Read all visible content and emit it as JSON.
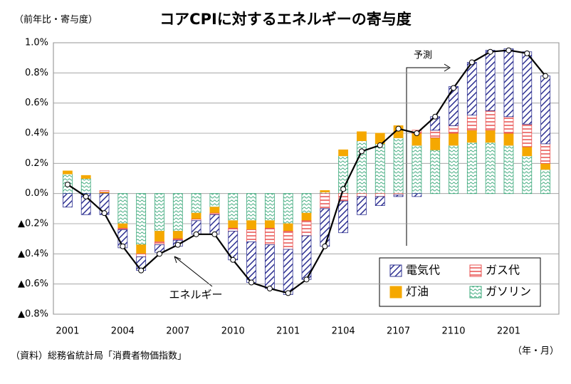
{
  "chart_data": {
    "type": "stacked_bar_line",
    "title": "コアCPIに対するエネルギーの寄与度",
    "y_label": "（前年比・寄与度）",
    "x_label": "（年・月）",
    "source": "（資料）総務省統計局「消費者物価指数」",
    "annotations": [
      "予測",
      "エネルギー"
    ],
    "categories": [
      "2001",
      null,
      null,
      "2004",
      null,
      null,
      "2007",
      null,
      null,
      "2010",
      null,
      null,
      "2101",
      null,
      null,
      "2104",
      null,
      null,
      "2107",
      null,
      null,
      "2110",
      null,
      null,
      "2201",
      null,
      null
    ],
    "series": [
      {
        "name": "電気代",
        "color": "#2e3192",
        "values": [
          -0.09,
          -0.14,
          -0.14,
          -0.12,
          -0.09,
          -0.05,
          -0.04,
          -0.09,
          -0.13,
          -0.19,
          -0.27,
          -0.29,
          -0.3,
          -0.29,
          -0.25,
          -0.21,
          -0.12,
          -0.06,
          -0.01,
          -0.02,
          0.09,
          0.26,
          0.35,
          0.4,
          0.45,
          0.48,
          0.45
        ]
      },
      {
        "name": "ガス代",
        "color": "#e8504f",
        "values": [
          0,
          0,
          0.01,
          -0.01,
          -0.02,
          -0.02,
          -0.01,
          -0.01,
          -0.01,
          -0.02,
          -0.08,
          -0.11,
          -0.12,
          -0.1,
          -0.1,
          -0.05,
          -0.02,
          -0.02,
          -0.01,
          0.02,
          0.05,
          0.05,
          0.1,
          0.13,
          0.11,
          0.15,
          0.13
        ]
      },
      {
        "name": "灯油",
        "color": "#f5a800",
        "values": [
          0.02,
          0.02,
          0.01,
          -0.03,
          -0.06,
          -0.07,
          -0.05,
          -0.04,
          -0.04,
          -0.05,
          -0.06,
          -0.05,
          -0.05,
          -0.05,
          0.01,
          0.04,
          0.06,
          0.07,
          0.08,
          0.08,
          0.08,
          0.08,
          0.08,
          0.08,
          0.08,
          0.06,
          0.04
        ]
      },
      {
        "name": "ガソリン",
        "color": "#3aa87a",
        "values": [
          0.13,
          0.1,
          0,
          -0.2,
          -0.34,
          -0.25,
          -0.25,
          -0.13,
          -0.09,
          -0.18,
          -0.18,
          -0.18,
          -0.2,
          -0.13,
          0.01,
          0.25,
          0.35,
          0.33,
          0.37,
          0.32,
          0.29,
          0.32,
          0.34,
          0.34,
          0.32,
          0.25,
          0.16
        ]
      }
    ],
    "line": {
      "name": "エネルギー",
      "color": "#000000",
      "values": [
        0.06,
        -0.02,
        -0.13,
        -0.35,
        -0.51,
        -0.4,
        -0.34,
        -0.27,
        -0.27,
        -0.44,
        -0.59,
        -0.63,
        -0.66,
        -0.57,
        -0.35,
        0.03,
        0.28,
        0.32,
        0.43,
        0.4,
        0.51,
        0.7,
        0.87,
        0.94,
        0.95,
        0.93,
        0.78
      ]
    },
    "ylim": [
      -0.8,
      1.0
    ],
    "yticks": [
      {
        "value": -0.8,
        "label": "▲0.8%"
      },
      {
        "value": -0.6,
        "label": "▲0.6%"
      },
      {
        "value": -0.4,
        "label": "▲0.4%"
      },
      {
        "value": -0.2,
        "label": "▲0.2%"
      },
      {
        "value": 0,
        "label": "0.0%"
      },
      {
        "value": 0.2,
        "label": "0.2%"
      },
      {
        "value": 0.4,
        "label": "0.4%"
      },
      {
        "value": 0.6,
        "label": "0.6%"
      },
      {
        "value": 0.8,
        "label": "0.8%"
      },
      {
        "value": 1.0,
        "label": "1.0%"
      }
    ],
    "grid": true
  }
}
